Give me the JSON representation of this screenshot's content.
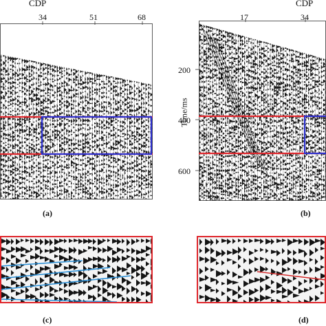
{
  "panel_a": {
    "axis_title": "CDP",
    "x_ticks": [
      "34",
      "51",
      "68"
    ],
    "caption": "(a)"
  },
  "panel_b": {
    "axis_title": "CDP",
    "x_ticks": [
      "17",
      "34"
    ],
    "y_axis_label": "Time/ms",
    "y_ticks": [
      "200",
      "400",
      "600"
    ],
    "caption": "(b)"
  },
  "panel_c": {
    "caption": "(c)"
  },
  "panel_d": {
    "caption": "(d)"
  },
  "colors": {
    "red_box": "#e0252b",
    "blue_box": "#2b2fd0",
    "cyan_lines": "#2a8fd6",
    "red_line": "#d42222",
    "panel_bg": "#f4f4f4",
    "wiggle_fill": "#141414"
  }
}
